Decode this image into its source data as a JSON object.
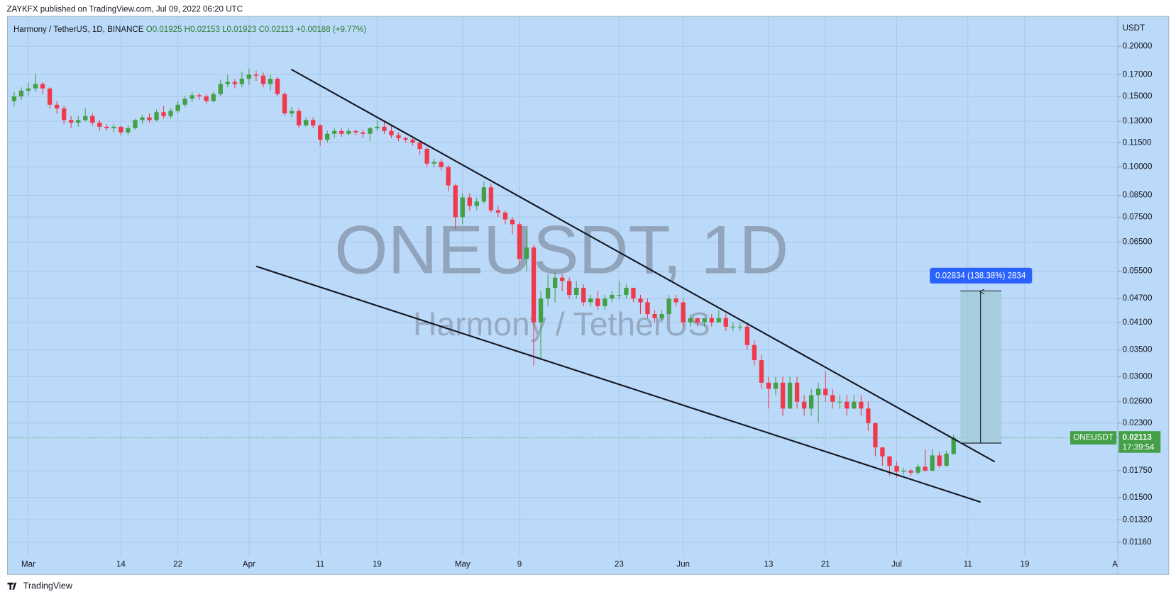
{
  "header": "ZAYKFX published on TradingView.com, Jul 09, 2022 06:20 UTC",
  "footer": "TradingView",
  "chart_data": {
    "type": "candlestick",
    "symbol": "Harmony / TetherUS, 1D, BINANCE",
    "ohlc_text": [
      "O0.01925",
      "H0.02153",
      "L0.01923",
      "C0.02113",
      "+0.00188 (+9.77%)"
    ],
    "watermark": "ONEUSDT, 1D",
    "watermark_subtitle": "Harmony / TetherUS",
    "y_unit": "USDT",
    "log_scale": true,
    "grid": true,
    "up_color": "#43a047",
    "down_color": "#f0394a",
    "measure_label": "0.02834 (138.38%) 2834",
    "last_price": {
      "symbol": "ONEUSDT",
      "price": 0.02113,
      "countdown": "17:39:54"
    },
    "ylim": [
      0.01074,
      0.2374
    ],
    "yticks": [
      {
        "value": 0.2,
        "label": "0.20000"
      },
      {
        "value": 0.17,
        "label": "0.17000"
      },
      {
        "value": 0.15,
        "label": "0.15000"
      },
      {
        "value": 0.13,
        "label": "0.13000"
      },
      {
        "value": 0.115,
        "label": "0.11500"
      },
      {
        "value": 0.1,
        "label": "0.10000"
      },
      {
        "value": 0.085,
        "label": "0.08500"
      },
      {
        "value": 0.075,
        "label": "0.07500"
      },
      {
        "value": 0.065,
        "label": "0.06500"
      },
      {
        "value": 0.055,
        "label": "0.05500"
      },
      {
        "value": 0.047,
        "label": "0.04700"
      },
      {
        "value": 0.041,
        "label": "0.04100"
      },
      {
        "value": 0.035,
        "label": "0.03500"
      },
      {
        "value": 0.03,
        "label": "0.03000"
      },
      {
        "value": 0.026,
        "label": "0.02600"
      },
      {
        "value": 0.023,
        "label": "0.02300"
      },
      {
        "value": 0.0175,
        "label": "0.01750"
      },
      {
        "value": 0.015,
        "label": "0.01500"
      },
      {
        "value": 0.0132,
        "label": "0.01320"
      },
      {
        "value": 0.0116,
        "label": "0.01160"
      }
    ],
    "categories": [
      null,
      null,
      "Mar",
      null,
      null,
      null,
      null,
      null,
      null,
      null,
      null,
      null,
      null,
      null,
      null,
      "14",
      null,
      null,
      null,
      null,
      null,
      null,
      null,
      "22",
      null,
      null,
      null,
      null,
      null,
      null,
      null,
      null,
      null,
      "Apr",
      null,
      null,
      null,
      null,
      null,
      null,
      null,
      null,
      null,
      "11",
      null,
      null,
      null,
      null,
      null,
      null,
      null,
      "19",
      null,
      null,
      null,
      null,
      null,
      null,
      null,
      null,
      null,
      null,
      null,
      "May",
      null,
      null,
      null,
      null,
      null,
      null,
      null,
      "9",
      null,
      null,
      null,
      null,
      null,
      null,
      null,
      null,
      null,
      null,
      null,
      null,
      null,
      "23",
      null,
      null,
      null,
      null,
      null,
      null,
      null,
      null,
      "Jun",
      null,
      null,
      null,
      null,
      null,
      null,
      null,
      null,
      null,
      null,
      null,
      "13",
      null,
      null,
      null,
      null,
      null,
      null,
      null,
      "21",
      null,
      null,
      null,
      null,
      null,
      null,
      null,
      null,
      null,
      "Jul",
      null,
      null,
      null,
      null,
      null,
      null,
      null,
      null,
      null,
      "11",
      null,
      null,
      null,
      null,
      null,
      null,
      null,
      "19",
      null,
      null,
      null,
      null,
      null,
      null,
      null,
      null,
      null,
      null,
      null,
      null,
      "Au"
    ],
    "open": [
      0.146,
      0.15,
      0.155,
      0.157,
      0.161,
      0.157,
      0.143,
      0.14,
      0.131,
      0.129,
      0.131,
      0.134,
      0.129,
      0.126,
      0.125,
      0.126,
      0.122,
      0.125,
      0.131,
      0.133,
      0.131,
      0.137,
      0.134,
      0.138,
      0.143,
      0.148,
      0.151,
      0.15,
      0.146,
      0.152,
      0.161,
      0.163,
      0.161,
      0.166,
      0.17,
      0.169,
      0.161,
      0.166,
      0.152,
      0.136,
      0.138,
      0.127,
      0.131,
      0.127,
      0.117,
      0.121,
      0.123,
      0.121,
      0.123,
      0.122,
      0.121,
      0.125,
      0.126,
      0.123,
      0.12,
      0.118,
      0.117,
      0.115,
      0.111,
      0.102,
      0.103,
      0.1,
      0.09,
      0.075,
      0.084,
      0.08,
      0.082,
      0.089,
      0.078,
      0.077,
      0.074,
      0.072,
      0.059,
      0.063,
      0.041,
      0.047,
      0.05,
      0.053,
      0.052,
      0.048,
      0.05,
      0.046,
      0.047,
      0.045,
      0.047,
      0.048,
      0.048,
      0.05,
      0.047,
      0.046,
      0.043,
      0.042,
      0.043,
      0.047,
      0.046,
      0.041,
      0.042,
      0.041,
      0.042,
      0.041,
      0.042,
      0.04,
      0.04,
      0.04,
      0.036,
      0.033,
      0.029,
      0.028,
      0.029,
      0.025,
      0.029,
      0.026,
      0.025,
      0.027,
      0.028,
      0.027,
      0.026,
      0.026,
      0.025,
      0.026,
      0.025,
      0.023,
      0.02,
      0.019,
      0.018,
      0.0174,
      0.0175,
      0.0173,
      0.0179,
      0.0175,
      0.0191,
      0.018,
      0.01925,
      null,
      null,
      null,
      null,
      null,
      null,
      null,
      null,
      null,
      null,
      null,
      null,
      null,
      null,
      null,
      null,
      null,
      null,
      null,
      null,
      null,
      null,
      null
    ],
    "high": [
      0.154,
      0.158,
      0.162,
      0.171,
      0.163,
      0.158,
      0.146,
      0.142,
      0.134,
      0.134,
      0.14,
      0.136,
      0.131,
      0.128,
      0.128,
      0.127,
      0.127,
      0.132,
      0.135,
      0.136,
      0.139,
      0.142,
      0.14,
      0.146,
      0.15,
      0.154,
      0.153,
      0.152,
      0.154,
      0.165,
      0.17,
      0.166,
      0.173,
      0.176,
      0.174,
      0.172,
      0.17,
      0.168,
      0.154,
      0.141,
      0.14,
      0.133,
      0.133,
      0.128,
      0.123,
      0.125,
      0.125,
      0.125,
      0.124,
      0.124,
      0.126,
      0.131,
      0.131,
      0.127,
      0.122,
      0.119,
      0.118,
      0.116,
      0.112,
      0.105,
      0.105,
      0.101,
      0.091,
      0.086,
      0.086,
      0.084,
      0.092,
      0.091,
      0.08,
      0.078,
      0.075,
      0.073,
      0.07,
      0.064,
      0.049,
      0.054,
      0.055,
      0.054,
      0.053,
      0.052,
      0.051,
      0.048,
      0.049,
      0.048,
      0.049,
      0.052,
      0.051,
      0.05,
      0.048,
      0.047,
      0.044,
      0.044,
      0.048,
      0.048,
      0.047,
      0.043,
      0.042,
      0.042,
      0.043,
      0.044,
      0.043,
      0.041,
      0.041,
      0.041,
      0.037,
      0.034,
      0.03,
      0.03,
      0.03,
      0.03,
      0.03,
      0.027,
      0.028,
      0.029,
      0.031,
      0.028,
      0.027,
      0.027,
      0.027,
      0.027,
      0.026,
      0.023,
      0.02,
      0.019,
      0.0185,
      0.0178,
      0.0177,
      0.0182,
      0.0198,
      0.0198,
      0.0195,
      0.0196,
      0.02153,
      null,
      null,
      null,
      null,
      null,
      null,
      null,
      null,
      null,
      null,
      null,
      null,
      null,
      null,
      null,
      null,
      null,
      null,
      null,
      null,
      null,
      null,
      null
    ],
    "low": [
      0.142,
      0.147,
      0.151,
      0.154,
      0.152,
      0.14,
      0.136,
      0.128,
      0.125,
      0.126,
      0.13,
      0.127,
      0.123,
      0.123,
      0.122,
      0.12,
      0.12,
      0.124,
      0.128,
      0.129,
      0.13,
      0.132,
      0.132,
      0.136,
      0.141,
      0.145,
      0.147,
      0.144,
      0.145,
      0.15,
      0.158,
      0.157,
      0.158,
      0.16,
      0.164,
      0.158,
      0.155,
      0.15,
      0.134,
      0.133,
      0.125,
      0.126,
      0.125,
      0.113,
      0.115,
      0.118,
      0.119,
      0.12,
      0.12,
      0.118,
      0.116,
      0.123,
      0.121,
      0.118,
      0.116,
      0.115,
      0.113,
      0.107,
      0.1,
      0.1,
      0.098,
      0.087,
      0.07,
      0.072,
      0.078,
      0.078,
      0.081,
      0.077,
      0.075,
      0.072,
      0.068,
      0.057,
      0.055,
      0.032,
      0.033,
      0.045,
      0.046,
      0.049,
      0.047,
      0.047,
      0.045,
      0.045,
      0.044,
      0.044,
      0.046,
      0.047,
      0.047,
      0.046,
      0.043,
      0.042,
      0.041,
      0.041,
      0.043,
      0.045,
      0.04,
      0.04,
      0.04,
      0.04,
      0.04,
      0.041,
      0.039,
      0.039,
      0.039,
      0.035,
      0.032,
      0.028,
      0.025,
      0.027,
      0.024,
      0.025,
      0.025,
      0.024,
      0.024,
      0.023,
      0.026,
      0.025,
      0.025,
      0.024,
      0.025,
      0.024,
      0.022,
      0.019,
      0.018,
      0.017,
      0.0168,
      0.0171,
      0.017,
      0.0171,
      0.0174,
      0.0174,
      0.0178,
      0.0179,
      0.01923,
      null,
      null,
      null,
      null,
      null,
      null,
      null,
      null,
      null,
      null,
      null,
      null,
      null,
      null,
      null,
      null,
      null,
      null,
      null,
      null,
      null,
      null,
      null
    ],
    "close": [
      0.15,
      0.155,
      0.157,
      0.161,
      0.157,
      0.143,
      0.14,
      0.131,
      0.129,
      0.131,
      0.134,
      0.129,
      0.126,
      0.125,
      0.126,
      0.122,
      0.125,
      0.131,
      0.133,
      0.131,
      0.137,
      0.134,
      0.138,
      0.143,
      0.148,
      0.151,
      0.15,
      0.146,
      0.152,
      0.161,
      0.163,
      0.161,
      0.166,
      0.17,
      0.169,
      0.161,
      0.166,
      0.152,
      0.136,
      0.138,
      0.127,
      0.131,
      0.127,
      0.117,
      0.121,
      0.123,
      0.121,
      0.123,
      0.122,
      0.121,
      0.125,
      0.126,
      0.123,
      0.12,
      0.118,
      0.117,
      0.115,
      0.111,
      0.102,
      0.103,
      0.1,
      0.09,
      0.075,
      0.084,
      0.08,
      0.082,
      0.089,
      0.078,
      0.077,
      0.074,
      0.072,
      0.059,
      0.063,
      0.041,
      0.047,
      0.05,
      0.053,
      0.052,
      0.048,
      0.05,
      0.046,
      0.047,
      0.045,
      0.047,
      0.048,
      0.048,
      0.05,
      0.047,
      0.046,
      0.043,
      0.042,
      0.043,
      0.047,
      0.046,
      0.041,
      0.042,
      0.041,
      0.042,
      0.041,
      0.042,
      0.04,
      0.04,
      0.04,
      0.036,
      0.033,
      0.029,
      0.028,
      0.029,
      0.025,
      0.029,
      0.026,
      0.025,
      0.027,
      0.028,
      0.027,
      0.026,
      0.026,
      0.025,
      0.026,
      0.025,
      0.023,
      0.02,
      0.019,
      0.018,
      0.0174,
      0.0175,
      0.0173,
      0.0179,
      0.0175,
      0.0191,
      0.018,
      0.0193,
      0.02113,
      null,
      null,
      null,
      null,
      null,
      null,
      null,
      null,
      null,
      null,
      null,
      null,
      null,
      null,
      null,
      null,
      null,
      null,
      null,
      null,
      null,
      null,
      null
    ]
  }
}
